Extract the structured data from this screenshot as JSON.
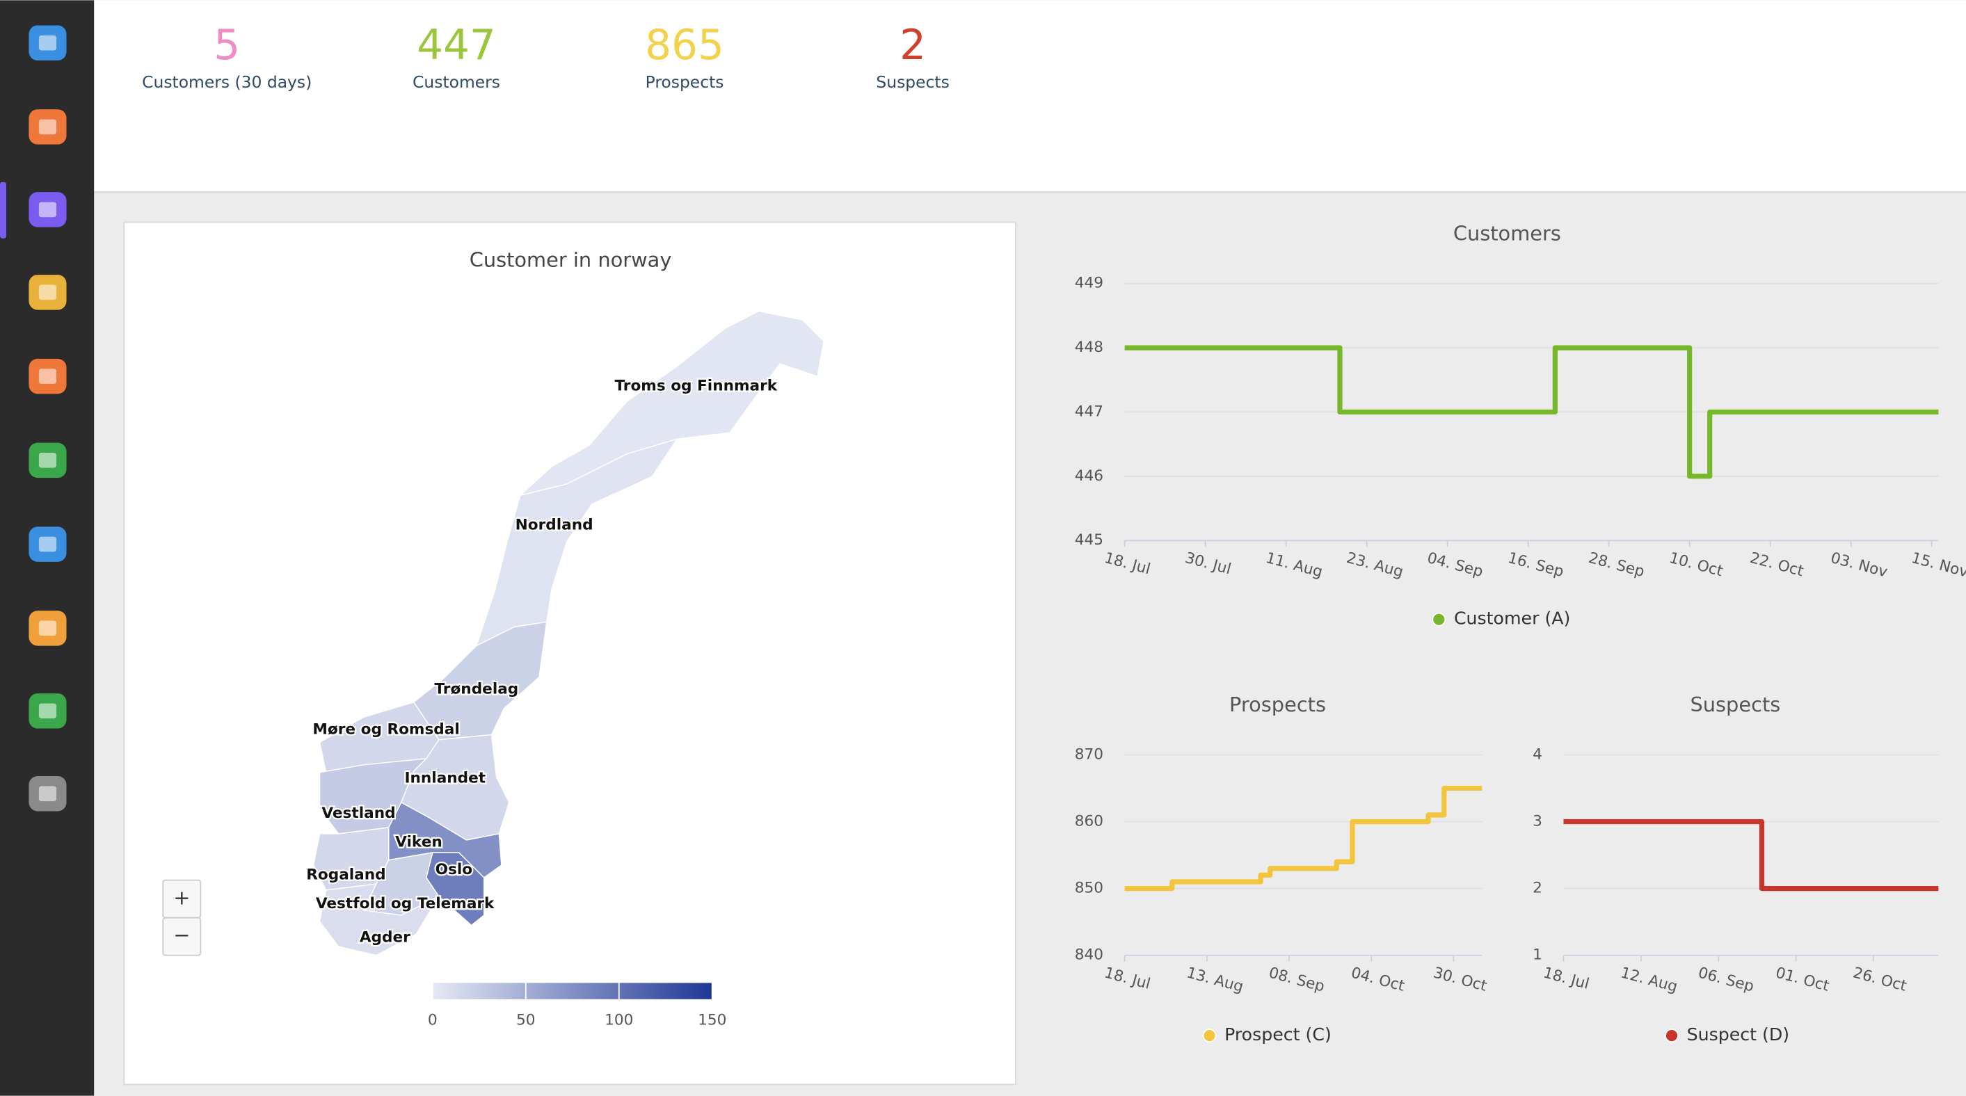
{
  "kpis": [
    {
      "value": 5,
      "label": "Customers (30 days)",
      "color": "#f08bc8"
    },
    {
      "value": 447,
      "label": "Customers",
      "color": "#9bc53d"
    },
    {
      "value": 865,
      "label": "Prospects",
      "color": "#f2d14b"
    },
    {
      "value": 2,
      "label": "Suspects",
      "color": "#d0402a"
    }
  ],
  "map": {
    "title": "Customer in norway",
    "zoom_in": "+",
    "zoom_out": "−",
    "regions": [
      {
        "name": "Troms og Finnmark",
        "value": 3
      },
      {
        "name": "Nordland",
        "value": 5
      },
      {
        "name": "Trøndelag",
        "value": 20
      },
      {
        "name": "Møre og Romsdal",
        "value": 15
      },
      {
        "name": "Innlandet",
        "value": 15
      },
      {
        "name": "Vestland",
        "value": 25
      },
      {
        "name": "Viken",
        "value": 75
      },
      {
        "name": "Oslo",
        "value": 90
      },
      {
        "name": "Rogaland",
        "value": 15
      },
      {
        "name": "Vestfold og Telemark",
        "value": 20
      },
      {
        "name": "Agder",
        "value": 10
      }
    ],
    "colorbar": {
      "min": 0,
      "max": 150,
      "ticks": [
        0,
        50,
        100,
        150
      ],
      "low_color": "#e6e9f4",
      "high_color": "#1e3796"
    }
  },
  "chart_data": [
    {
      "type": "line",
      "step": true,
      "title": "Customers",
      "x": [
        "18. Jul",
        "19. Aug",
        "20. Sep",
        "10. Oct",
        "13. Oct",
        "16. Nov"
      ],
      "series": [
        {
          "name": "Customer (A)",
          "color": "#76b82a",
          "values": [
            448,
            447,
            448,
            446,
            447,
            447
          ]
        }
      ],
      "xlim": [
        "18. Jul",
        "16. Nov"
      ],
      "xticks": [
        "18. Jul",
        "30. Jul",
        "11. Aug",
        "23. Aug",
        "04. Sep",
        "16. Sep",
        "28. Sep",
        "10. Oct",
        "22. Oct",
        "03. Nov",
        "15. Nov"
      ],
      "ylim": [
        445,
        449
      ],
      "yticks": [
        445,
        446,
        447,
        448,
        449
      ],
      "grid": true
    },
    {
      "type": "line",
      "step": true,
      "title": "Prospects",
      "x": [
        "18. Jul",
        "02. Aug",
        "30. Aug",
        "02. Sep",
        "23. Sep",
        "28. Sep",
        "22. Oct",
        "27. Oct",
        "08. Nov"
      ],
      "series": [
        {
          "name": "Prospect (C)",
          "color": "#f2c53d",
          "values": [
            850,
            851,
            852,
            853,
            854,
            860,
            861,
            865,
            865
          ]
        }
      ],
      "xlim": [
        "18. Jul",
        "08. Nov"
      ],
      "xticks": [
        "18. Jul",
        "13. Aug",
        "08. Sep",
        "04. Oct",
        "30. Oct"
      ],
      "ylim": [
        840,
        870
      ],
      "yticks": [
        840,
        850,
        860,
        870
      ],
      "grid": true
    },
    {
      "type": "line",
      "step": true,
      "title": "Suspects",
      "x": [
        "18. Jul",
        "20. Sep",
        "16. Nov"
      ],
      "series": [
        {
          "name": "Suspect (D)",
          "color": "#c8352b",
          "values": [
            3,
            2,
            2
          ]
        }
      ],
      "xlim": [
        "18. Jul",
        "16. Nov"
      ],
      "xticks": [
        "18. Jul",
        "12. Aug",
        "06. Sep",
        "01. Oct",
        "26. Oct"
      ],
      "ylim": [
        1,
        4
      ],
      "yticks": [
        1,
        2,
        3,
        4
      ],
      "grid": true
    }
  ]
}
